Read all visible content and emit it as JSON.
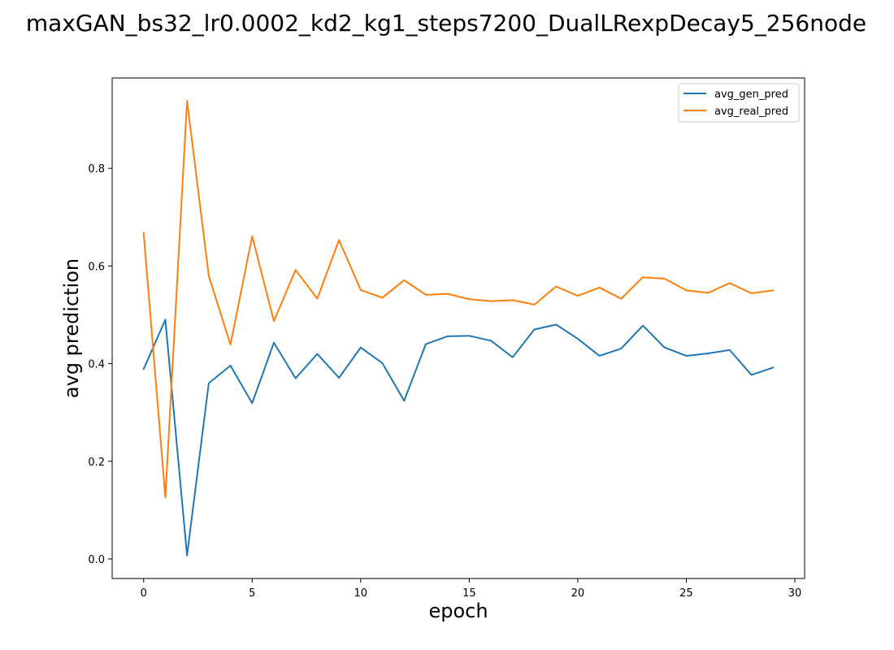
{
  "chart_data": {
    "type": "line",
    "title": "maxGAN_bs32_lr0.0002_kd2_kg1_steps7200_DualLRexpDecay5_256node",
    "xlabel": "epoch",
    "ylabel": "avg prediction",
    "xlim": [
      -1.45,
      30.45
    ],
    "ylim": [
      -0.04,
      0.985
    ],
    "xticks": [
      0,
      5,
      10,
      15,
      20,
      25,
      30
    ],
    "xtick_labels": [
      "0",
      "5",
      "10",
      "15",
      "20",
      "25",
      "30"
    ],
    "yticks": [
      0.0,
      0.2,
      0.4,
      0.6,
      0.8
    ],
    "ytick_labels": [
      "0.0",
      "0.2",
      "0.4",
      "0.6",
      "0.8"
    ],
    "grid": false,
    "legend_position": "top-right",
    "x": [
      0,
      1,
      2,
      3,
      4,
      5,
      6,
      7,
      8,
      9,
      10,
      11,
      12,
      13,
      14,
      15,
      16,
      17,
      18,
      19,
      20,
      21,
      22,
      23,
      24,
      25,
      26,
      27,
      28,
      29
    ],
    "series": [
      {
        "name": "avg_gen_pred",
        "color": "#1f77b4",
        "values": [
          0.389,
          0.49,
          0.007,
          0.36,
          0.396,
          0.319,
          0.443,
          0.37,
          0.42,
          0.371,
          0.433,
          0.401,
          0.324,
          0.44,
          0.456,
          0.457,
          0.447,
          0.413,
          0.47,
          0.48,
          0.451,
          0.416,
          0.431,
          0.478,
          0.433,
          0.416,
          0.421,
          0.428,
          0.377,
          0.392
        ]
      },
      {
        "name": "avg_real_pred",
        "color": "#ff7f0e",
        "values": [
          0.668,
          0.126,
          0.938,
          0.58,
          0.439,
          0.661,
          0.487,
          0.592,
          0.533,
          0.653,
          0.551,
          0.535,
          0.571,
          0.541,
          0.543,
          0.532,
          0.528,
          0.53,
          0.521,
          0.558,
          0.539,
          0.556,
          0.533,
          0.577,
          0.574,
          0.55,
          0.545,
          0.565,
          0.544,
          0.55
        ]
      }
    ]
  }
}
